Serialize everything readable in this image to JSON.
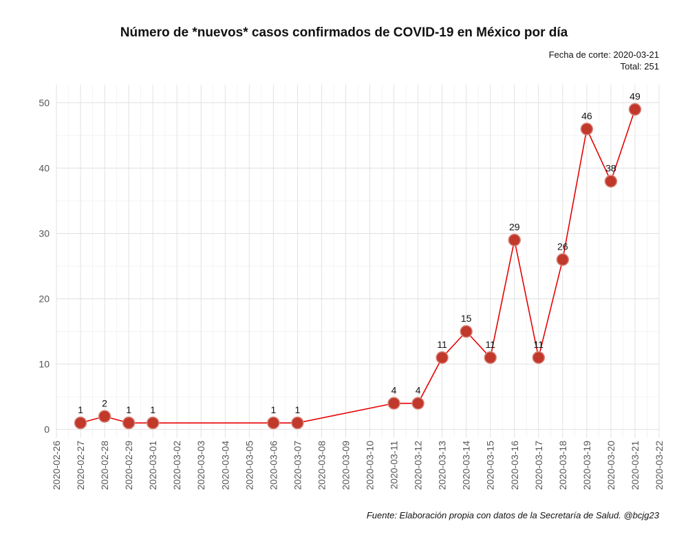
{
  "title": "Número de *nuevos* casos confirmados de COVID-19 en México por día",
  "subtitle": {
    "line1": "Fecha de corte: 2020-03-21",
    "line2": "Total: 251"
  },
  "caption": "Fuente: Elaboración propia con datos de la Secretaría de Salud. @bcjg23",
  "colors": {
    "line": "#e60000",
    "point_fill": "#c0392b",
    "point_stroke": "#d98880"
  },
  "chart_data": {
    "type": "line",
    "title": "Número de *nuevos* casos confirmados de COVID-19 en México por día",
    "xlabel": "",
    "ylabel": "",
    "x_ticks": [
      "2020-02-26",
      "2020-02-27",
      "2020-02-28",
      "2020-02-29",
      "2020-03-01",
      "2020-03-02",
      "2020-03-03",
      "2020-03-04",
      "2020-03-05",
      "2020-03-06",
      "2020-03-07",
      "2020-03-08",
      "2020-03-09",
      "2020-03-10",
      "2020-03-11",
      "2020-03-12",
      "2020-03-13",
      "2020-03-14",
      "2020-03-15",
      "2020-03-16",
      "2020-03-17",
      "2020-03-18",
      "2020-03-19",
      "2020-03-20",
      "2020-03-21",
      "2020-03-22"
    ],
    "y_ticks": [
      0,
      10,
      20,
      30,
      40,
      50
    ],
    "xlim": [
      "2020-02-26",
      "2020-03-22"
    ],
    "ylim": [
      -1.3,
      52.8
    ],
    "grid": true,
    "series": [
      {
        "x": [
          "2020-02-27",
          "2020-02-28",
          "2020-02-29",
          "2020-03-01",
          "2020-03-06",
          "2020-03-07",
          "2020-03-11",
          "2020-03-12",
          "2020-03-13",
          "2020-03-14",
          "2020-03-15",
          "2020-03-16",
          "2020-03-17",
          "2020-03-18",
          "2020-03-19",
          "2020-03-20",
          "2020-03-21"
        ],
        "y": [
          1,
          2,
          1,
          1,
          1,
          1,
          4,
          4,
          11,
          15,
          11,
          29,
          11,
          26,
          46,
          38,
          49
        ]
      }
    ]
  }
}
